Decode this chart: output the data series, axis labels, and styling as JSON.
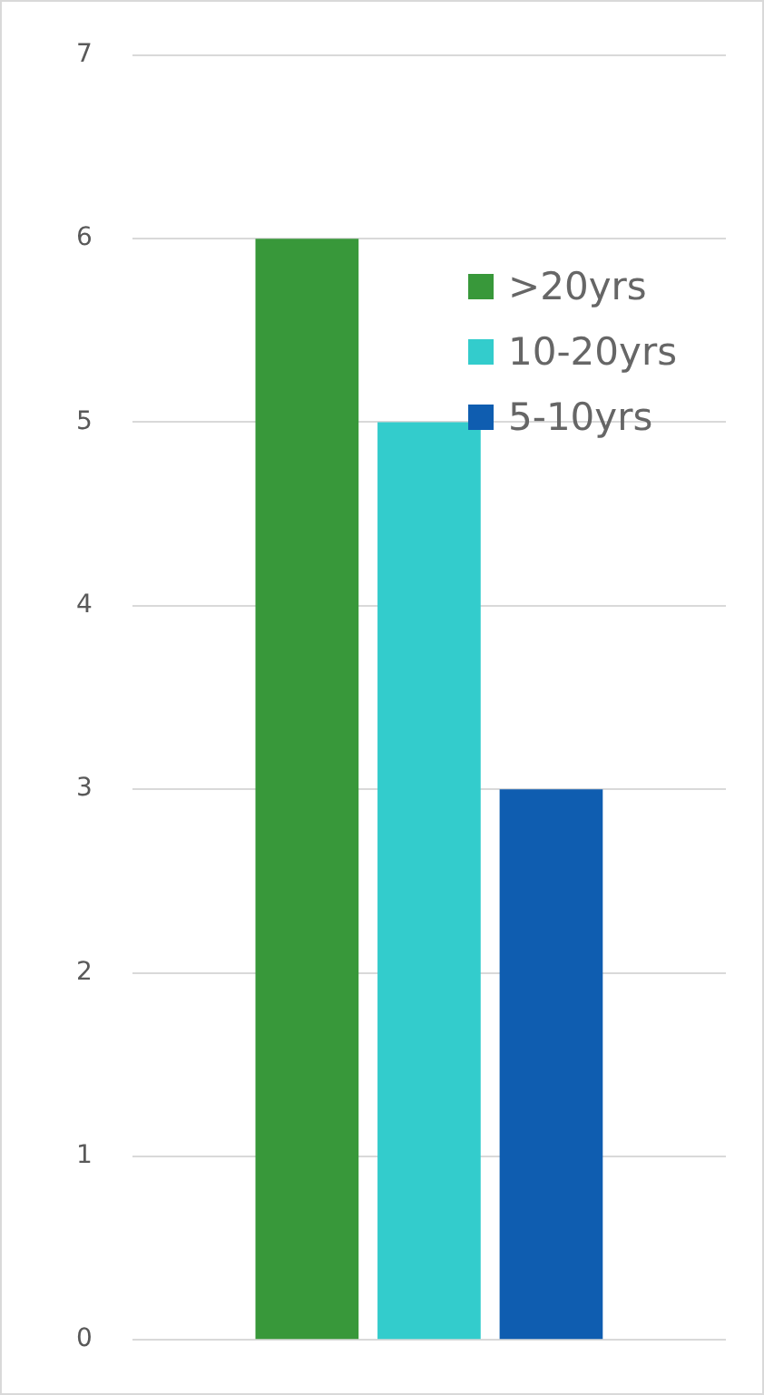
{
  "chart_data": {
    "type": "bar",
    "categories": [
      null
    ],
    "series": [
      {
        "name": ">20yrs",
        "color": "#38983a",
        "values": [
          6
        ]
      },
      {
        "name": "10-20yrs",
        "color": "#33cccc",
        "values": [
          5
        ]
      },
      {
        "name": "5-10yrs",
        "color": "#0f5db0",
        "values": [
          3
        ]
      }
    ],
    "ylim": [
      0,
      7
    ],
    "yticks": [
      0,
      1,
      2,
      3,
      4,
      5,
      6,
      7
    ],
    "grid": "y",
    "legend": "top right"
  }
}
